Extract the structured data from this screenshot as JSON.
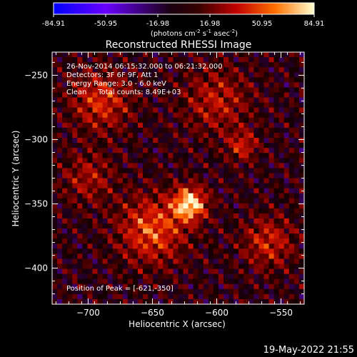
{
  "colorbar": {
    "ticks": [
      "-84.91",
      "-50.95",
      "-16.98",
      "16.98",
      "50.95",
      "84.91"
    ],
    "units_main": "(photons cm",
    "units_exp1": "-2",
    "units_mid": " s",
    "units_exp2": "-1",
    "units_mid2": " asec",
    "units_exp3": "-2",
    "units_end": ")",
    "min": -84.91,
    "max": 84.91
  },
  "chart_data": {
    "type": "heatmap",
    "title": "Reconstructed RHESSI Image",
    "xlabel": "Heliocentric X (arcsec)",
    "ylabel": "Heliocentric Y (arcsec)",
    "xlim": [
      -728,
      -532
    ],
    "ylim": [
      -428,
      -232
    ],
    "x_ticks": [
      -700,
      -650,
      -600,
      -550
    ],
    "y_ticks": [
      -250,
      -300,
      -350,
      -400
    ],
    "x_tick_labels": [
      "−700",
      "−650",
      "−600",
      "−550"
    ],
    "y_tick_labels": [
      "−250",
      "−300",
      "−350",
      "−400"
    ],
    "peak": [
      -621,
      -350
    ],
    "sources": [
      {
        "x": -621,
        "y": -350,
        "amp": 84.91,
        "sigma": 9
      },
      {
        "x": -650,
        "y": -370,
        "amp": 55,
        "sigma": 18
      },
      {
        "x": -690,
        "y": -270,
        "amp": 45,
        "sigma": 16
      },
      {
        "x": -560,
        "y": -380,
        "amp": 40,
        "sigma": 14
      },
      {
        "x": -600,
        "y": -270,
        "amp": 35,
        "sigma": 18
      },
      {
        "x": -580,
        "y": -305,
        "amp": 40,
        "sigma": 8
      },
      {
        "x": -700,
        "y": -330,
        "amp": 30,
        "sigma": 14
      }
    ]
  },
  "annotations": {
    "time": "26-Nov-2014 06:15:32.000 to 06:21:32.000",
    "detectors": "Detectors: 3F 6F 9F, Att 1",
    "energy": "Energy Range: 3.0 - 6.0 keV",
    "clean": "Clean     Total counts: 8.49E+03",
    "peak": "Position of Peak = [-621,-350]"
  },
  "footer": {
    "date": "19-May-2022 21:55"
  }
}
